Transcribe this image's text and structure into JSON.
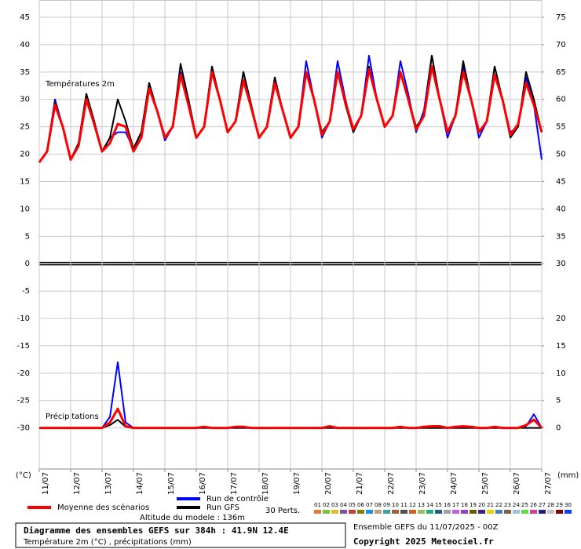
{
  "chart_data": {
    "type": "line",
    "title": "Diagramme des ensembles GEFS sur 384h : 41.9N 12.4E",
    "subtitle": "Température 2m (°C) , précipitations (mm)",
    "run_label": "Ensemble GEFS du 11/07/2025 - 00Z",
    "copyright": "Copyright 2025 Meteociel.fr",
    "altitude": "Altitude du modele : 136m",
    "temperature_label": "Températures 2m",
    "precipitation_label": "Précipitations",
    "y_unit": "(°C)",
    "y2_unit": "(mm)",
    "xlim": [
      0,
      384
    ],
    "xticks": [
      {
        "value": 0,
        "label": "11/07"
      },
      {
        "value": 24,
        "label": "12/07"
      },
      {
        "value": 48,
        "label": "13/07"
      },
      {
        "value": 72,
        "label": "14/07"
      },
      {
        "value": 96,
        "label": "15/07"
      },
      {
        "value": 120,
        "label": "16/07"
      },
      {
        "value": 144,
        "label": "17/07"
      },
      {
        "value": 168,
        "label": "18/07"
      },
      {
        "value": 192,
        "label": "19/07"
      },
      {
        "value": 216,
        "label": "20/07"
      },
      {
        "value": 240,
        "label": "21/07"
      },
      {
        "value": 264,
        "label": "22/07"
      },
      {
        "value": 288,
        "label": "23/07"
      },
      {
        "value": 312,
        "label": "24/07"
      },
      {
        "value": 336,
        "label": "25/07"
      },
      {
        "value": 360,
        "label": "26/07"
      },
      {
        "value": 384,
        "label": "27/07"
      }
    ],
    "ylim": [
      -37.5,
      45
    ],
    "yticks": [
      -30,
      -25,
      -20,
      -15,
      -10,
      -5,
      0,
      5,
      10,
      15,
      20,
      25,
      30,
      35,
      40,
      45
    ],
    "y2lim": [
      -7.5,
      75
    ],
    "y2ticks": [
      0,
      5,
      10,
      15,
      20,
      30,
      35,
      40,
      45,
      50,
      55,
      60,
      65,
      70,
      75
    ],
    "grid": true,
    "x": [
      0,
      6,
      12,
      18,
      24,
      30,
      36,
      42,
      48,
      54,
      60,
      66,
      72,
      78,
      84,
      90,
      96,
      102,
      108,
      114,
      120,
      126,
      132,
      138,
      144,
      150,
      156,
      162,
      168,
      174,
      180,
      186,
      192,
      198,
      204,
      210,
      216,
      222,
      228,
      234,
      240,
      246,
      252,
      258,
      264,
      270,
      276,
      282,
      288,
      294,
      300,
      306,
      312,
      318,
      324,
      330,
      336,
      342,
      348,
      354,
      360,
      366,
      372,
      378,
      384
    ],
    "series": [
      {
        "name": "Moyenne des scénarios",
        "color": "#ff0000",
        "values": [
          18.5,
          20.5,
          29,
          25,
          19,
          21.5,
          30,
          25.5,
          20.5,
          22,
          25.5,
          25,
          20.5,
          23,
          32,
          28,
          23,
          25,
          34.5,
          29,
          23,
          25,
          35,
          30,
          24,
          26,
          33.5,
          28.5,
          23,
          25,
          33,
          28,
          23,
          25,
          35,
          30,
          23.5,
          26,
          35,
          29.5,
          24.5,
          27,
          35.5,
          30,
          25,
          27,
          35,
          30,
          24.5,
          27,
          36,
          30,
          24,
          27,
          35,
          30,
          24,
          26,
          34.5,
          30,
          23.5,
          25.5,
          33,
          29,
          24
        ]
      },
      {
        "name": "Run de contrôle",
        "color": "#0000ff",
        "values": [
          18.5,
          20.5,
          30,
          25,
          19,
          22,
          31,
          26,
          20.5,
          23,
          24,
          24,
          21,
          24,
          33,
          28,
          22.5,
          25,
          35,
          30,
          23,
          25,
          36,
          30,
          24,
          26,
          35,
          29,
          23,
          25,
          34,
          28,
          23,
          25,
          37,
          30,
          23,
          26,
          37,
          30,
          24,
          27,
          38,
          30,
          25,
          27,
          37,
          31,
          24,
          28,
          38,
          30,
          23,
          27,
          36,
          30,
          23,
          26,
          36,
          30,
          24,
          25,
          34,
          29,
          19
        ]
      },
      {
        "name": "Run GFS",
        "color": "#000000",
        "values": [
          18.5,
          20.5,
          29.5,
          25,
          19,
          22,
          31,
          26,
          20.5,
          23,
          30,
          26,
          21,
          24,
          33,
          28,
          23,
          25,
          36.5,
          30,
          23,
          25,
          36,
          30,
          24,
          26,
          35,
          29,
          23,
          25,
          34,
          28,
          23,
          25,
          35,
          30,
          24,
          26,
          35,
          29,
          24,
          27,
          36,
          30,
          25,
          27,
          35,
          30,
          25,
          27,
          38,
          30,
          24,
          27,
          37,
          30,
          24,
          26,
          36,
          30,
          23,
          25,
          35,
          30,
          24
        ]
      },
      {
        "color": "#ff0000",
        "axis": "y2",
        "values": [
          0,
          0,
          0,
          0,
          0,
          0,
          0,
          0,
          0,
          1,
          3.5,
          0.3,
          0,
          0,
          0,
          0,
          0,
          0,
          0,
          0,
          0,
          0.2,
          0,
          0,
          0,
          0.2,
          0.2,
          0,
          0,
          0,
          0,
          0,
          0,
          0,
          0,
          0,
          0,
          0.3,
          0,
          0,
          0,
          0,
          0,
          0,
          0,
          0,
          0.2,
          0,
          0,
          0.2,
          0.3,
          0.3,
          0,
          0.2,
          0.3,
          0.2,
          0,
          0,
          0.2,
          0,
          0,
          0,
          0.5,
          1.5,
          0
        ]
      },
      {
        "color": "#0000ff",
        "axis": "y2",
        "values": [
          0,
          0,
          0,
          0,
          0,
          0,
          0,
          0,
          0,
          2,
          12,
          1,
          0,
          0,
          0,
          0,
          0,
          0,
          0,
          0,
          0,
          0,
          0,
          0,
          0,
          0,
          0,
          0,
          0,
          0,
          0,
          0,
          0,
          0,
          0,
          0,
          0,
          0,
          0,
          0,
          0,
          0,
          0,
          0,
          0,
          0,
          0,
          0,
          0,
          0,
          0,
          0,
          0,
          0,
          0,
          0,
          0,
          0,
          0,
          0,
          0,
          0,
          0.3,
          2.5,
          0
        ]
      },
      {
        "color": "#000000",
        "axis": "y2",
        "values": [
          0,
          0,
          0,
          0,
          0,
          0,
          0,
          0,
          0,
          0.5,
          1.5,
          0.2,
          0,
          0,
          0,
          0,
          0,
          0,
          0,
          0,
          0,
          0,
          0,
          0,
          0,
          0,
          0,
          0,
          0,
          0,
          0,
          0,
          0,
          0,
          0,
          0,
          0,
          0,
          0,
          0,
          0,
          0,
          0,
          0,
          0,
          0,
          0,
          0,
          0,
          0,
          0,
          0,
          0,
          0,
          0,
          0,
          0,
          0,
          0,
          0,
          0,
          0,
          0,
          0,
          0
        ]
      }
    ],
    "perturbations": {
      "label": "30 Perts.",
      "members": [
        {
          "name": "01",
          "color": "#e07b39"
        },
        {
          "name": "02",
          "color": "#7fbf3f"
        },
        {
          "name": "03",
          "color": "#e0c020"
        },
        {
          "name": "04",
          "color": "#8050a0"
        },
        {
          "name": "05",
          "color": "#c04040"
        },
        {
          "name": "06",
          "color": "#808000"
        },
        {
          "name": "07",
          "color": "#2090e0"
        },
        {
          "name": "08",
          "color": "#c0a070"
        },
        {
          "name": "09",
          "color": "#40a0a0"
        },
        {
          "name": "10",
          "color": "#a06030"
        },
        {
          "name": "11",
          "color": "#505050"
        },
        {
          "name": "12",
          "color": "#d06020"
        },
        {
          "name": "13",
          "color": "#90c060"
        },
        {
          "name": "14",
          "color": "#20b080"
        },
        {
          "name": "15",
          "color": "#206080"
        },
        {
          "name": "16",
          "color": "#a0a0a0"
        },
        {
          "name": "17",
          "color": "#c060e0"
        },
        {
          "name": "18",
          "color": "#9040c0"
        },
        {
          "name": "19",
          "color": "#606000"
        },
        {
          "name": "20",
          "color": "#402080"
        },
        {
          "name": "21",
          "color": "#f0d000"
        },
        {
          "name": "22",
          "color": "#4080c0"
        },
        {
          "name": "23",
          "color": "#806040"
        },
        {
          "name": "24",
          "color": "#a0c0e0"
        },
        {
          "name": "25",
          "color": "#60e040"
        },
        {
          "name": "26",
          "color": "#d040a0"
        },
        {
          "name": "27",
          "color": "#202080"
        },
        {
          "name": "28",
          "color": "#c0c0c0"
        },
        {
          "name": "29",
          "color": "#800000"
        },
        {
          "name": "30",
          "color": "#1040ff"
        }
      ]
    }
  }
}
